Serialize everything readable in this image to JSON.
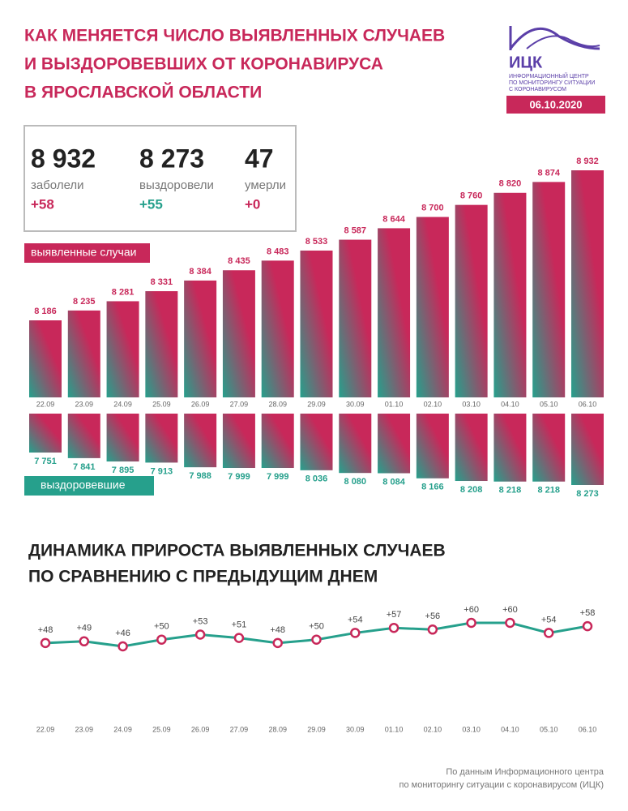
{
  "header": {
    "title": [
      "КАК МЕНЯЕТСЯ ЧИСЛО ВЫЯВЛЕННЫХ СЛУЧАЕВ",
      "И ВЫЗДОРОВЕВШИХ ОТ КОРОНАВИРУСА",
      "В ЯРОСЛАВСКОЙ ОБЛАСТИ"
    ],
    "logo": "ИЦК",
    "logo_text": [
      "ИНФОРМАЦИОННЫЙ ЦЕНТР",
      "ПО МОНИТОРИНГУ СИТУАЦИИ",
      "С КОРОНАВИРУСОМ"
    ],
    "date": "06.10.2020"
  },
  "stats": [
    {
      "value": "8 932",
      "label": "заболели",
      "change": "+58"
    },
    {
      "value": "8 273",
      "label": "выздоровели",
      "change": "+55"
    },
    {
      "value": "47",
      "label": "умерли",
      "change": "+0"
    }
  ],
  "chart_data": [
    {
      "type": "bar",
      "categories": [
        "22.09",
        "23.09",
        "24.09",
        "25.09",
        "26.09",
        "27.09",
        "28.09",
        "29.09",
        "30.09",
        "01.10",
        "02.10",
        "03.10",
        "04.10",
        "05.10",
        "06.10"
      ],
      "series": [
        {
          "name": "выявленные случаи",
          "color": "#c8285a",
          "values": [
            8186,
            8235,
            8281,
            8331,
            8384,
            8435,
            8483,
            8533,
            8587,
            8644,
            8700,
            8760,
            8820,
            8874,
            8932
          ],
          "value_labels": [
            "8 186",
            "8 235",
            "8 281",
            "8 331",
            "8 384",
            "8 435",
            "8 483",
            "8 533",
            "8 587",
            "8 644",
            "8 700",
            "8 760",
            "8 820",
            "8 874",
            "8 932"
          ]
        },
        {
          "name": "выздоровевшие",
          "color": "#26a08c",
          "values": [
            7751,
            7841,
            7895,
            7913,
            7988,
            7999,
            7999,
            8036,
            8080,
            8084,
            8166,
            8208,
            8218,
            8218,
            8273
          ],
          "value_labels": [
            "7 751",
            "7 841",
            "7 895",
            "7 913",
            "7 988",
            "7 999",
            "7 999",
            "8 036",
            "8 080",
            "8 084",
            "8 166",
            "8 208",
            "8 218",
            "8 218",
            "8 273"
          ]
        }
      ]
    },
    {
      "type": "line",
      "title": [
        "ДИНАМИКА ПРИРОСТА ВЫЯВЛЕННЫХ СЛУЧАЕВ",
        "ПО СРАВНЕНИЮ С ПРЕДЫДУЩИМ ДНЕМ"
      ],
      "categories": [
        "22.09",
        "23.09",
        "24.09",
        "25.09",
        "26.09",
        "27.09",
        "28.09",
        "29.09",
        "30.09",
        "01.10",
        "02.10",
        "03.10",
        "04.10",
        "05.10",
        "06.10"
      ],
      "values": [
        48,
        49,
        46,
        50,
        53,
        51,
        48,
        50,
        54,
        57,
        56,
        60,
        60,
        54,
        58
      ],
      "value_labels": [
        "+48",
        "+49",
        "+46",
        "+50",
        "+53",
        "+51",
        "+48",
        "+50",
        "+54",
        "+57",
        "+56",
        "+60",
        "+60",
        "+54",
        "+58"
      ],
      "color": "#26a08c",
      "marker_color": "#c8285a"
    }
  ],
  "footer": [
    "По данным Информационного центра",
    "по мониторингу ситуации с коронавирусом (ИЦК)"
  ]
}
